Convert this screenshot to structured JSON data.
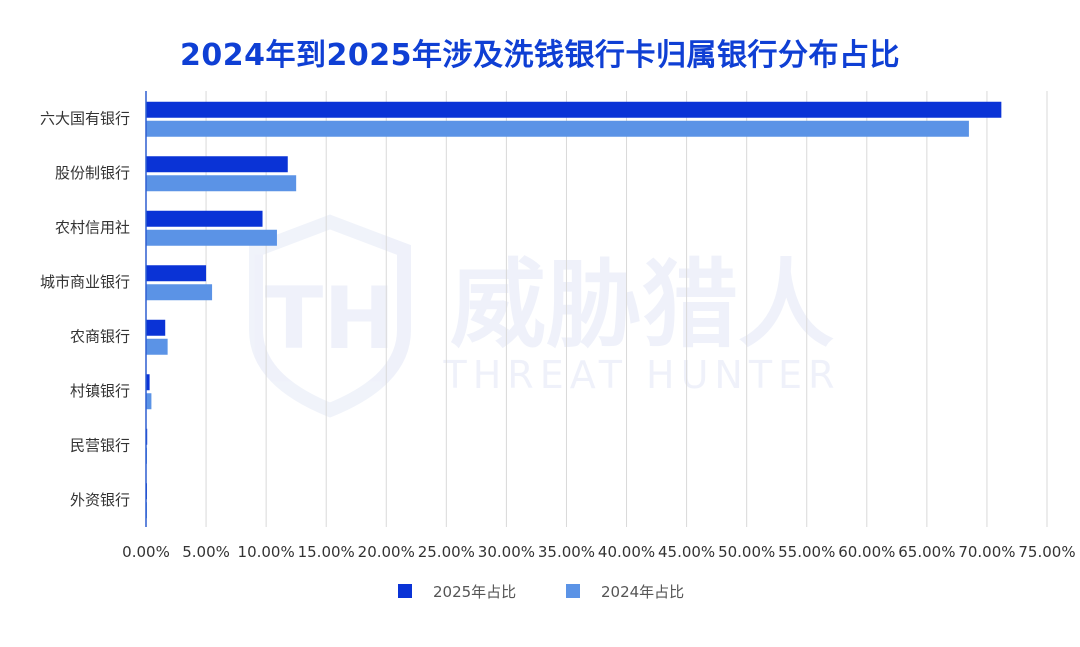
{
  "chart_data": {
    "type": "bar",
    "orientation": "horizontal",
    "title": "2024年到2025年涉及洗钱银行卡归属银行分布占比",
    "categories": [
      "六大国有银行",
      "股份制银行",
      "农村信用社",
      "城市商业银行",
      "农商银行",
      "村镇银行",
      "民营银行",
      "外资银行"
    ],
    "series": [
      {
        "name": "2025年占比",
        "color": "#0a33d6",
        "values": [
          71.2,
          11.8,
          9.7,
          5.0,
          1.6,
          0.3,
          0.1,
          0.05
        ]
      },
      {
        "name": "2024年占比",
        "color": "#5b93e6",
        "values": [
          68.5,
          12.5,
          10.9,
          5.5,
          1.8,
          0.45,
          0.08,
          0.05
        ]
      }
    ],
    "xlim": [
      0,
      75
    ],
    "xticks": [
      0,
      5,
      10,
      15,
      20,
      25,
      30,
      35,
      40,
      45,
      50,
      55,
      60,
      65,
      70,
      75
    ],
    "xtick_labels": [
      "0.00%",
      "5.00%",
      "10.00%",
      "15.00%",
      "20.00%",
      "25.00%",
      "30.00%",
      "35.00%",
      "40.00%",
      "45.00%",
      "50.00%",
      "55.00%",
      "60.00%",
      "65.00%",
      "70.00%",
      "75.00%"
    ],
    "grid": true,
    "legend_position": "bottom-center"
  },
  "watermark": {
    "text_cn": "威胁猎人",
    "text_en": "THREAT HUNTER"
  }
}
